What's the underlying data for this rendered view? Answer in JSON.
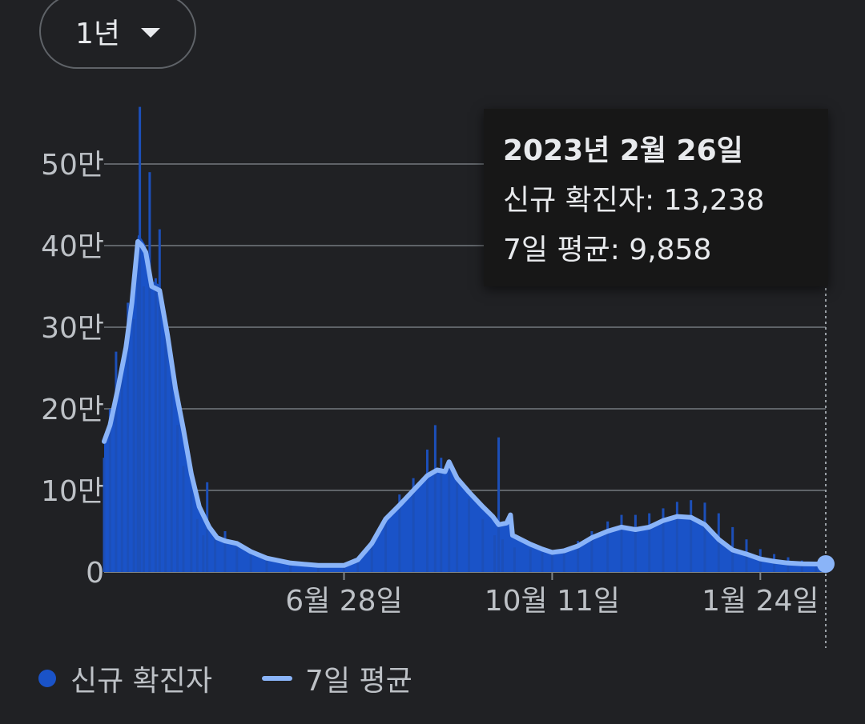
{
  "range_selector": {
    "label": "1년"
  },
  "tooltip": {
    "date": "2023년 2월 26일",
    "new_cases_label": "신규 확진자",
    "new_cases_value": "13,238",
    "avg_label": "7일 평균",
    "avg_value": "9,858"
  },
  "legend": {
    "bars_label": "신규 확진자",
    "line_label": "7일 평균"
  },
  "colors": {
    "bar": "#1a53c8",
    "line": "#8ab4f8",
    "grid": "#5f6368",
    "background": "#202124"
  },
  "chart_data": {
    "type": "bar",
    "title": "",
    "xlabel": "",
    "ylabel": "",
    "x_range": [
      "2022-02-27",
      "2023-02-26"
    ],
    "ylim": [
      0,
      560000
    ],
    "yticks": [
      0,
      100000,
      200000,
      300000,
      400000,
      500000
    ],
    "ytick_labels": [
      "0",
      "10만",
      "20만",
      "30만",
      "40만",
      "50만"
    ],
    "xticks": [
      "2022-06-28",
      "2022-10-11",
      "2023-01-24"
    ],
    "xtick_labels": [
      "6월 28일",
      "10월 11일",
      "1월 24일"
    ],
    "grid": true,
    "legend_position": "bottom",
    "series": [
      {
        "name": "신규 확진자",
        "type": "bar",
        "points": [
          [
            "2022-02-27",
            140000
          ],
          [
            "2022-03-02",
            200000
          ],
          [
            "2022-03-05",
            270000
          ],
          [
            "2022-03-08",
            250000
          ],
          [
            "2022-03-11",
            330000
          ],
          [
            "2022-03-14",
            310000
          ],
          [
            "2022-03-16",
            390000
          ],
          [
            "2022-03-17",
            570000
          ],
          [
            "2022-03-19",
            350000
          ],
          [
            "2022-03-22",
            490000
          ],
          [
            "2022-03-25",
            360000
          ],
          [
            "2022-03-27",
            420000
          ],
          [
            "2022-03-30",
            290000
          ],
          [
            "2022-04-02",
            240000
          ],
          [
            "2022-04-05",
            180000
          ],
          [
            "2022-04-08",
            130000
          ],
          [
            "2022-04-12",
            100000
          ],
          [
            "2022-04-15",
            65000
          ],
          [
            "2022-04-18",
            45000
          ],
          [
            "2022-04-20",
            110000
          ],
          [
            "2022-04-24",
            40000
          ],
          [
            "2022-04-29",
            50000
          ],
          [
            "2022-05-05",
            30000
          ],
          [
            "2022-05-12",
            25000
          ],
          [
            "2022-05-20",
            18000
          ],
          [
            "2022-06-01",
            12000
          ],
          [
            "2022-06-15",
            8000
          ],
          [
            "2022-06-28",
            8000
          ],
          [
            "2022-07-05",
            15000
          ],
          [
            "2022-07-12",
            35000
          ],
          [
            "2022-07-19",
            65000
          ],
          [
            "2022-07-26",
            95000
          ],
          [
            "2022-08-02",
            115000
          ],
          [
            "2022-08-09",
            150000
          ],
          [
            "2022-08-13",
            180000
          ],
          [
            "2022-08-16",
            140000
          ],
          [
            "2022-08-20",
            130000
          ],
          [
            "2022-08-24",
            110000
          ],
          [
            "2022-08-30",
            90000
          ],
          [
            "2022-09-06",
            65000
          ],
          [
            "2022-09-12",
            45000
          ],
          [
            "2022-09-14",
            165000
          ],
          [
            "2022-09-16",
            40000
          ],
          [
            "2022-09-22",
            30000
          ],
          [
            "2022-09-30",
            28000
          ],
          [
            "2022-10-06",
            24000
          ],
          [
            "2022-10-11",
            22000
          ],
          [
            "2022-10-17",
            25000
          ],
          [
            "2022-10-24",
            38000
          ],
          [
            "2022-10-31",
            50000
          ],
          [
            "2022-11-08",
            62000
          ],
          [
            "2022-11-15",
            70000
          ],
          [
            "2022-11-22",
            70000
          ],
          [
            "2022-11-29",
            72000
          ],
          [
            "2022-12-06",
            78000
          ],
          [
            "2022-12-13",
            86000
          ],
          [
            "2022-12-20",
            88000
          ],
          [
            "2022-12-27",
            85000
          ],
          [
            "2023-01-03",
            72000
          ],
          [
            "2023-01-10",
            55000
          ],
          [
            "2023-01-17",
            40000
          ],
          [
            "2023-01-24",
            28000
          ],
          [
            "2023-01-31",
            22000
          ],
          [
            "2023-02-07",
            18000
          ],
          [
            "2023-02-14",
            14000
          ],
          [
            "2023-02-21",
            12000
          ],
          [
            "2023-02-26",
            13238
          ]
        ]
      },
      {
        "name": "7일 평균",
        "type": "line",
        "points": [
          [
            "2022-02-27",
            160000
          ],
          [
            "2022-03-02",
            180000
          ],
          [
            "2022-03-06",
            225000
          ],
          [
            "2022-03-10",
            275000
          ],
          [
            "2022-03-13",
            330000
          ],
          [
            "2022-03-16",
            405000
          ],
          [
            "2022-03-18",
            400000
          ],
          [
            "2022-03-20",
            392000
          ],
          [
            "2022-03-23",
            350000
          ],
          [
            "2022-03-27",
            345000
          ],
          [
            "2022-03-31",
            290000
          ],
          [
            "2022-04-04",
            225000
          ],
          [
            "2022-04-08",
            175000
          ],
          [
            "2022-04-12",
            120000
          ],
          [
            "2022-04-16",
            80000
          ],
          [
            "2022-04-19",
            65000
          ],
          [
            "2022-04-21",
            55000
          ],
          [
            "2022-04-25",
            42000
          ],
          [
            "2022-04-29",
            38000
          ],
          [
            "2022-05-05",
            35000
          ],
          [
            "2022-05-12",
            25000
          ],
          [
            "2022-05-20",
            17000
          ],
          [
            "2022-06-01",
            11000
          ],
          [
            "2022-06-15",
            8000
          ],
          [
            "2022-06-28",
            8000
          ],
          [
            "2022-07-05",
            15000
          ],
          [
            "2022-07-12",
            35000
          ],
          [
            "2022-07-19",
            65000
          ],
          [
            "2022-07-26",
            82000
          ],
          [
            "2022-08-02",
            100000
          ],
          [
            "2022-08-09",
            118000
          ],
          [
            "2022-08-14",
            125000
          ],
          [
            "2022-08-18",
            123000
          ],
          [
            "2022-08-20",
            135000
          ],
          [
            "2022-08-24",
            115000
          ],
          [
            "2022-08-30",
            98000
          ],
          [
            "2022-09-06",
            80000
          ],
          [
            "2022-09-11",
            68000
          ],
          [
            "2022-09-14",
            58000
          ],
          [
            "2022-09-18",
            60000
          ],
          [
            "2022-09-20",
            70000
          ],
          [
            "2022-09-21",
            45000
          ],
          [
            "2022-09-30",
            34000
          ],
          [
            "2022-10-06",
            28000
          ],
          [
            "2022-10-11",
            24000
          ],
          [
            "2022-10-17",
            26000
          ],
          [
            "2022-10-24",
            32000
          ],
          [
            "2022-10-31",
            42000
          ],
          [
            "2022-11-08",
            50000
          ],
          [
            "2022-11-15",
            55000
          ],
          [
            "2022-11-22",
            52000
          ],
          [
            "2022-11-29",
            55000
          ],
          [
            "2022-12-06",
            63000
          ],
          [
            "2022-12-13",
            68000
          ],
          [
            "2022-12-20",
            67000
          ],
          [
            "2022-12-27",
            58000
          ],
          [
            "2023-01-03",
            40000
          ],
          [
            "2023-01-10",
            27000
          ],
          [
            "2023-01-17",
            22000
          ],
          [
            "2023-01-24",
            16000
          ],
          [
            "2023-01-31",
            13000
          ],
          [
            "2023-02-07",
            11000
          ],
          [
            "2023-02-14",
            10000
          ],
          [
            "2023-02-21",
            9800
          ],
          [
            "2023-02-26",
            9858
          ]
        ]
      }
    ],
    "highlight": {
      "date": "2023-02-26",
      "value": 9858
    }
  }
}
